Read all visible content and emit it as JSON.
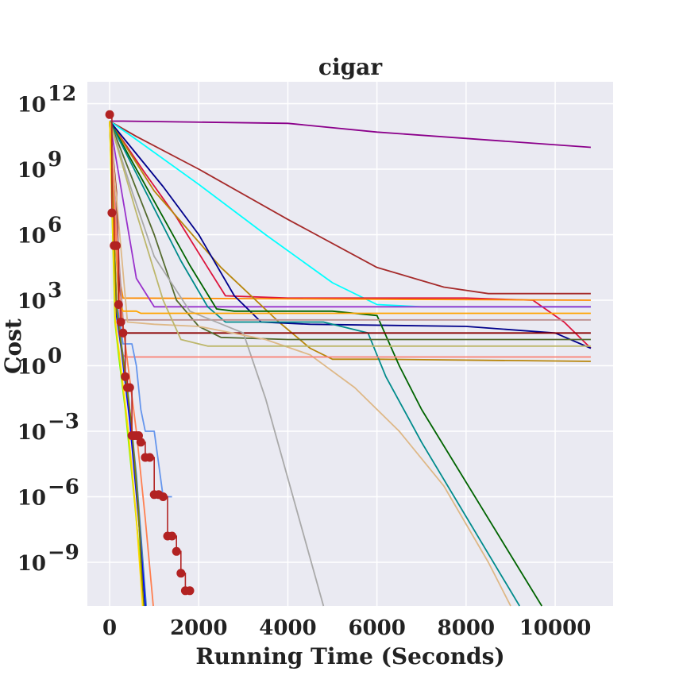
{
  "chart_data": {
    "type": "line",
    "title": "cigar",
    "xlabel": "Running Time (Seconds)",
    "ylabel": "Cost",
    "xscale": "linear",
    "yscale": "log",
    "xlim": [
      -500,
      11300
    ],
    "ylim_exp": [
      -11,
      13
    ],
    "xticks": [
      0,
      2000,
      4000,
      6000,
      8000,
      10000
    ],
    "xtick_labels": [
      "0",
      "2000",
      "4000",
      "6000",
      "8000",
      "10000"
    ],
    "yticks_exp": [
      -9,
      -6,
      -3,
      0,
      3,
      6,
      9,
      12
    ],
    "ytick_bases": [
      "10",
      "10",
      "10",
      "10",
      "10",
      "10",
      "10",
      "10"
    ],
    "ytick_exponents": [
      "−9",
      "−6",
      "−3",
      "0",
      "3",
      "6",
      "9",
      "12"
    ],
    "grid": true,
    "background": "#eaeaf2",
    "series_note": "y values are base-10 exponents of cost",
    "series": [
      {
        "name": "purple",
        "color": "#8b008b",
        "x": [
          0,
          300,
          4000,
          6000,
          10800
        ],
        "y": [
          11.2,
          11.2,
          11.1,
          10.7,
          10.0
        ]
      },
      {
        "name": "brown",
        "color": "#a52a2a",
        "x": [
          0,
          600,
          2000,
          4000,
          6000,
          7500,
          8500,
          10800
        ],
        "y": [
          11.2,
          10.5,
          9.0,
          6.7,
          4.5,
          3.6,
          3.3,
          3.3
        ]
      },
      {
        "name": "cyan",
        "color": "#00ffff",
        "x": [
          0,
          500,
          2000,
          3500,
          5000,
          6000,
          7000,
          10800
        ],
        "y": [
          11.2,
          10.5,
          8.3,
          6.0,
          3.8,
          2.8,
          2.7,
          2.7
        ]
      },
      {
        "name": "crimson",
        "color": "#dc143c",
        "x": [
          0,
          800,
          1500,
          2200,
          2600,
          4000,
          8000,
          9500,
          10200,
          10800
        ],
        "y": [
          11.2,
          8.8,
          6.8,
          4.5,
          3.2,
          3.1,
          3.1,
          3.0,
          2.0,
          0.8
        ]
      },
      {
        "name": "orange",
        "color": "#ff8c00",
        "x": [
          0,
          220,
          300,
          10800
        ],
        "y": [
          11.2,
          4.0,
          3.1,
          3.0
        ]
      },
      {
        "name": "darkorchid",
        "color": "#9932cc",
        "x": [
          0,
          600,
          1000,
          10800
        ],
        "y": [
          11.2,
          4.0,
          2.7,
          2.7
        ]
      },
      {
        "name": "darkgoldenrod",
        "color": "#b8860b",
        "x": [
          0,
          1000,
          2500,
          3800,
          4500,
          5000,
          5500,
          6000,
          10800
        ],
        "y": [
          11.2,
          8.0,
          4.5,
          2.0,
          0.8,
          0.3,
          0.3,
          0.3,
          0.2
        ]
      },
      {
        "name": "darkblue",
        "color": "#00008b",
        "x": [
          0,
          1200,
          2000,
          2800,
          3400,
          4500,
          8000,
          10000,
          10800
        ],
        "y": [
          11.2,
          8.2,
          6.0,
          3.2,
          2.0,
          1.9,
          1.8,
          1.5,
          0.8
        ]
      },
      {
        "name": "green",
        "color": "#006400",
        "x": [
          0,
          1800,
          2400,
          2800,
          5000,
          6000,
          6500,
          7000,
          9700
        ],
        "y": [
          11.2,
          4.6,
          2.6,
          2.5,
          2.5,
          2.3,
          0.0,
          -2.0,
          -12.0
        ]
      },
      {
        "name": "teal",
        "color": "#008b8b",
        "x": [
          0,
          1600,
          2200,
          2600,
          4800,
          5800,
          6200,
          7000,
          9200
        ],
        "y": [
          11.2,
          4.8,
          2.7,
          2.0,
          2.0,
          1.5,
          -0.5,
          -3.5,
          -12.0
        ]
      },
      {
        "name": "darkred",
        "color": "#8b0000",
        "x": [
          0,
          150,
          250,
          10800
        ],
        "y": [
          11.2,
          8.0,
          1.5,
          1.5
        ]
      },
      {
        "name": "darkolive",
        "color": "#556b2f",
        "x": [
          0,
          1000,
          1500,
          2000,
          2500,
          4000,
          10800
        ],
        "y": [
          11.2,
          6.0,
          3.0,
          1.8,
          1.3,
          1.2,
          1.2
        ]
      },
      {
        "name": "rosybrown",
        "color": "#bc8f8f",
        "x": [
          0,
          300,
          10800
        ],
        "y": [
          11.2,
          2.1,
          2.1
        ]
      },
      {
        "name": "gray",
        "color": "#a9a9a9",
        "x": [
          0,
          500,
          1000,
          1800,
          3000,
          3500,
          4800
        ],
        "y": [
          11.2,
          8.0,
          5.0,
          2.5,
          1.5,
          -1.5,
          -12.0
        ]
      },
      {
        "name": "burlywood",
        "color": "#deb887",
        "x": [
          0,
          400,
          1000,
          2000,
          3500,
          4500,
          5500,
          6500,
          7500,
          8500,
          9000
        ],
        "y": [
          11.2,
          2.0,
          1.9,
          1.8,
          1.2,
          0.5,
          -1.0,
          -3.0,
          -5.5,
          -9.0,
          -12.0
        ]
      },
      {
        "name": "darkkhaki",
        "color": "#bdb76b",
        "x": [
          0,
          600,
          1200,
          1600,
          2200,
          10800
        ],
        "y": [
          11.2,
          7.0,
          3.0,
          1.2,
          0.9,
          0.9
        ]
      },
      {
        "name": "salmon",
        "color": "#fa8072",
        "x": [
          0,
          180,
          250,
          300,
          350,
          10800
        ],
        "y": [
          11.2,
          5.0,
          1.0,
          0.5,
          0.4,
          0.4
        ]
      },
      {
        "name": "light-orange",
        "color": "#ffa500",
        "x": [
          0,
          200,
          300,
          600,
          700,
          10800
        ],
        "y": [
          11.2,
          3.0,
          2.5,
          2.5,
          2.4,
          2.4
        ]
      },
      {
        "name": "cornflowerblue",
        "color": "#6495ed",
        "x": [
          0,
          150,
          300,
          500,
          600,
          700,
          800,
          1000,
          1200,
          1400
        ],
        "y": [
          11.2,
          3.0,
          1.0,
          1.0,
          0.0,
          -2.0,
          -3.0,
          -3.0,
          -6.0,
          -6.0
        ]
      },
      {
        "name": "steelblue",
        "color": "#4682b4",
        "x": [
          0,
          150,
          250,
          400,
          600,
          820
        ],
        "y": [
          11.2,
          3.0,
          1.2,
          -1.0,
          -5.0,
          -12.0
        ]
      },
      {
        "name": "lawngreen",
        "color": "#7cfc00",
        "x": [
          0,
          120,
          200,
          350,
          550,
          780
        ],
        "y": [
          11.2,
          2.0,
          0.5,
          -2.0,
          -6.0,
          -12.0
        ]
      },
      {
        "name": "blue",
        "color": "#0000ff",
        "x": [
          0,
          140,
          260,
          450,
          650,
          800
        ],
        "y": [
          11.2,
          2.5,
          0.8,
          -2.5,
          -7.0,
          -12.0
        ]
      },
      {
        "name": "coral",
        "color": "#ff7f50",
        "x": [
          0,
          200,
          350,
          600,
          800,
          980
        ],
        "y": [
          11.2,
          3.5,
          1.0,
          -3.0,
          -7.0,
          -12.0
        ]
      },
      {
        "name": "olive",
        "color": "#808000",
        "x": [
          0,
          160,
          280,
          480,
          640,
          760
        ],
        "y": [
          11.2,
          2.5,
          0.6,
          -2.5,
          -6.5,
          -12.0
        ]
      },
      {
        "name": "gold",
        "color": "#ffd700",
        "x": [
          0,
          130,
          230,
          420,
          600,
          740
        ],
        "y": [
          11.2,
          2.0,
          0.3,
          -3.0,
          -7.0,
          -12.0
        ]
      }
    ],
    "marker_series": {
      "name": "firebrick-markers",
      "color": "#b22222",
      "x": [
        0,
        50,
        100,
        150,
        200,
        250,
        300,
        350,
        400,
        450,
        500,
        550,
        600,
        650,
        700,
        800,
        900,
        1000,
        1100,
        1200,
        1300,
        1400,
        1500,
        1600,
        1700,
        1800
      ],
      "y": [
        11.5,
        7.0,
        5.5,
        5.5,
        2.8,
        2.0,
        1.5,
        -0.5,
        -1.0,
        -1.0,
        -3.2,
        -3.2,
        -3.2,
        -3.2,
        -3.5,
        -4.2,
        -4.2,
        -5.9,
        -5.9,
        -6.0,
        -7.8,
        -7.8,
        -8.5,
        -9.5,
        -10.3,
        -10.3
      ]
    }
  }
}
